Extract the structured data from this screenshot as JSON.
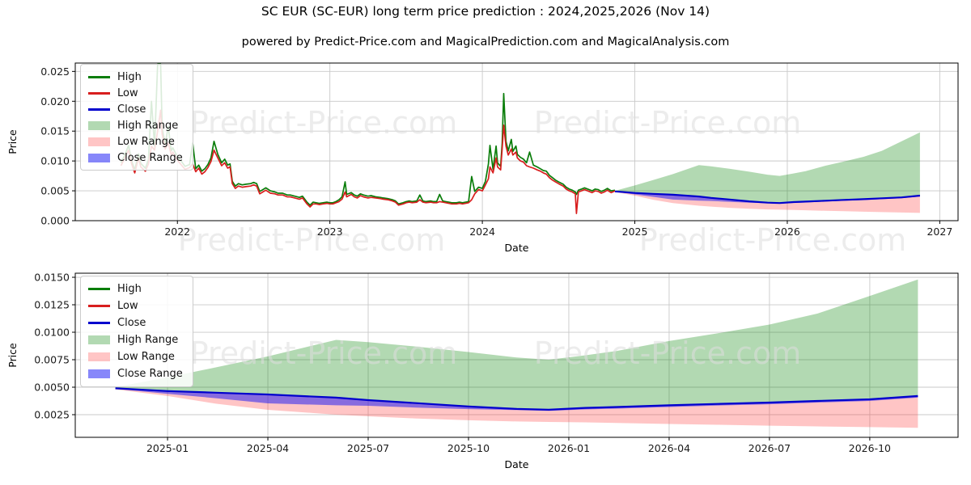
{
  "title": "SC EUR (SC-EUR) long term price prediction : 2024,2025,2026 (Nov 14)",
  "subtitle": "powered by Predict-Price.com and MagicalPrediction.com and MagicalAnalysis.com",
  "watermark": {
    "text": "Predict-Price.com"
  },
  "colors": {
    "high_line": "#0a7d0a",
    "low_line": "#d81e1e",
    "close_line": "#0000cd",
    "high_band": "rgba(0,128,0,0.30)",
    "low_band": "rgba(255,45,45,0.28)",
    "close_band": "rgba(25,25,245,0.52)",
    "grid": "#c9c9c9",
    "axis": "#000000",
    "tick_label": "#1a1a1a",
    "watermark": "#dedede",
    "legend_border": "#cccccc"
  },
  "legend": [
    {
      "label": "High",
      "swatch": "line",
      "color": "#0a7d0a"
    },
    {
      "label": "Low",
      "swatch": "line",
      "color": "#d81e1e"
    },
    {
      "label": "Close",
      "swatch": "line",
      "color": "#0000cd"
    },
    {
      "label": "High Range",
      "swatch": "patch",
      "color": "rgba(0,128,0,0.30)"
    },
    {
      "label": "Low Range",
      "swatch": "patch",
      "color": "rgba(255,45,45,0.28)"
    },
    {
      "label": "Close Range",
      "swatch": "patch",
      "color": "rgba(25,25,245,0.52)"
    }
  ],
  "chart_data": [
    {
      "type": "line",
      "name": "history-and-forecast",
      "title": "",
      "xlabel": "Date",
      "ylabel": "Price",
      "grid": true,
      "legend_position": "upper left",
      "xlim": [
        2021.33,
        2027.12
      ],
      "ylim": [
        0.0,
        0.0264
      ],
      "x_ticks": [
        {
          "t": 2022,
          "label": "2022"
        },
        {
          "t": 2023,
          "label": "2023"
        },
        {
          "t": 2024,
          "label": "2024"
        },
        {
          "t": 2025,
          "label": "2025"
        },
        {
          "t": 2026,
          "label": "2026"
        },
        {
          "t": 2027,
          "label": "2027"
        }
      ],
      "y_ticks": [
        {
          "v": 0.0,
          "label": "0.000"
        },
        {
          "v": 0.005,
          "label": "0.005"
        },
        {
          "v": 0.01,
          "label": "0.010"
        },
        {
          "v": 0.015,
          "label": "0.015"
        },
        {
          "v": 0.02,
          "label": "0.020"
        },
        {
          "v": 0.025,
          "label": "0.025"
        }
      ],
      "show_history": true,
      "show_forecast": true
    },
    {
      "type": "line",
      "name": "forecast-detail",
      "title": "",
      "xlabel": "Date",
      "ylabel": "Price",
      "grid": true,
      "legend_position": "upper left",
      "xlim": [
        2024.77,
        2026.97
      ],
      "ylim": [
        0.00044,
        0.01537
      ],
      "x_ticks": [
        {
          "t": 2025.0,
          "label": "2025-01"
        },
        {
          "t": 2025.25,
          "label": "2025-04"
        },
        {
          "t": 2025.5,
          "label": "2025-07"
        },
        {
          "t": 2025.75,
          "label": "2025-10"
        },
        {
          "t": 2026.0,
          "label": "2026-01"
        },
        {
          "t": 2026.25,
          "label": "2026-04"
        },
        {
          "t": 2026.5,
          "label": "2026-07"
        },
        {
          "t": 2026.75,
          "label": "2026-10"
        }
      ],
      "y_ticks": [
        {
          "v": 0.0025,
          "label": "0.0025"
        },
        {
          "v": 0.005,
          "label": "0.0050"
        },
        {
          "v": 0.0075,
          "label": "0.0075"
        },
        {
          "v": 0.01,
          "label": "0.0100"
        },
        {
          "v": 0.0125,
          "label": "0.0125"
        },
        {
          "v": 0.015,
          "label": "0.0150"
        }
      ],
      "show_history": false,
      "show_forecast": true
    }
  ],
  "history": {
    "columns": [
      "t",
      "low",
      "high"
    ],
    "points": [
      [
        2021.63,
        0.0092,
        0.0097
      ],
      [
        2021.655,
        0.0105,
        0.011
      ],
      [
        2021.68,
        0.0118,
        0.0126
      ],
      [
        2021.7,
        0.0095,
        0.01
      ],
      [
        2021.72,
        0.008,
        0.0085
      ],
      [
        2021.745,
        0.0105,
        0.0112
      ],
      [
        2021.76,
        0.009,
        0.0096
      ],
      [
        2021.79,
        0.0083,
        0.0088
      ],
      [
        2021.81,
        0.0095,
        0.0102
      ],
      [
        2021.83,
        0.0125,
        0.02
      ],
      [
        2021.85,
        0.0118,
        0.0125
      ],
      [
        2021.87,
        0.015,
        0.0262
      ],
      [
        2021.89,
        0.0185,
        0.0262
      ],
      [
        2021.9,
        0.0145,
        0.0155
      ],
      [
        2021.92,
        0.012,
        0.0128
      ],
      [
        2021.94,
        0.013,
        0.0158
      ],
      [
        2021.96,
        0.011,
        0.0117
      ],
      [
        2021.97,
        0.0115,
        0.0122
      ],
      [
        2021.99,
        0.0105,
        0.0112
      ],
      [
        2022.01,
        0.0098,
        0.0104
      ],
      [
        2022.03,
        0.0092,
        0.0098
      ],
      [
        2022.05,
        0.0086,
        0.0091
      ],
      [
        2022.08,
        0.0089,
        0.0094
      ],
      [
        2022.1,
        0.0095,
        0.013
      ],
      [
        2022.12,
        0.0082,
        0.0087
      ],
      [
        2022.14,
        0.0088,
        0.0093
      ],
      [
        2022.16,
        0.0078,
        0.0083
      ],
      [
        2022.18,
        0.0082,
        0.0087
      ],
      [
        2022.2,
        0.0089,
        0.0094
      ],
      [
        2022.22,
        0.0099,
        0.0105
      ],
      [
        2022.24,
        0.0118,
        0.0133
      ],
      [
        2022.265,
        0.0105,
        0.0111
      ],
      [
        2022.29,
        0.0092,
        0.0097
      ],
      [
        2022.31,
        0.0097,
        0.0103
      ],
      [
        2022.33,
        0.0088,
        0.0093
      ],
      [
        2022.345,
        0.009,
        0.0095
      ],
      [
        2022.36,
        0.0062,
        0.0066
      ],
      [
        2022.38,
        0.0054,
        0.0058
      ],
      [
        2022.4,
        0.0058,
        0.0062
      ],
      [
        2022.425,
        0.0056,
        0.006
      ],
      [
        2022.45,
        0.0057,
        0.0061
      ],
      [
        2022.48,
        0.0058,
        0.0062
      ],
      [
        2022.5,
        0.006,
        0.0064
      ],
      [
        2022.52,
        0.0058,
        0.0062
      ],
      [
        2022.54,
        0.0045,
        0.0049
      ],
      [
        2022.56,
        0.0048,
        0.0052
      ],
      [
        2022.58,
        0.0051,
        0.0055
      ],
      [
        2022.61,
        0.0046,
        0.005
      ],
      [
        2022.64,
        0.0045,
        0.0048
      ],
      [
        2022.66,
        0.0043,
        0.0046
      ],
      [
        2022.69,
        0.0043,
        0.0046
      ],
      [
        2022.72,
        0.004,
        0.0043
      ],
      [
        2022.74,
        0.004,
        0.0043
      ],
      [
        2022.77,
        0.0038,
        0.0041
      ],
      [
        2022.8,
        0.0036,
        0.0039
      ],
      [
        2022.82,
        0.0038,
        0.0041
      ],
      [
        2022.85,
        0.0028,
        0.0031
      ],
      [
        2022.87,
        0.0023,
        0.0026
      ],
      [
        2022.89,
        0.0028,
        0.0031
      ],
      [
        2022.91,
        0.0028,
        0.003
      ],
      [
        2022.93,
        0.0027,
        0.0029
      ],
      [
        2022.955,
        0.0028,
        0.003
      ],
      [
        2022.98,
        0.0029,
        0.0031
      ],
      [
        2023.0,
        0.0028,
        0.003
      ],
      [
        2023.02,
        0.0028,
        0.003
      ],
      [
        2023.04,
        0.003,
        0.0032
      ],
      [
        2023.06,
        0.0032,
        0.0035
      ],
      [
        2023.08,
        0.0036,
        0.004
      ],
      [
        2023.1,
        0.0048,
        0.0065
      ],
      [
        2023.11,
        0.004,
        0.0044
      ],
      [
        2023.14,
        0.0044,
        0.0047
      ],
      [
        2023.16,
        0.004,
        0.0043
      ],
      [
        2023.18,
        0.0038,
        0.0041
      ],
      [
        2023.2,
        0.0042,
        0.0045
      ],
      [
        2023.22,
        0.004,
        0.0043
      ],
      [
        2023.25,
        0.0038,
        0.0041
      ],
      [
        2023.27,
        0.0039,
        0.0042
      ],
      [
        2023.3,
        0.0038,
        0.004
      ],
      [
        2023.33,
        0.0037,
        0.0039
      ],
      [
        2023.35,
        0.0036,
        0.0038
      ],
      [
        2023.38,
        0.0035,
        0.0037
      ],
      [
        2023.41,
        0.0033,
        0.0035
      ],
      [
        2023.43,
        0.0031,
        0.0033
      ],
      [
        2023.45,
        0.0026,
        0.0028
      ],
      [
        2023.48,
        0.0028,
        0.003
      ],
      [
        2023.5,
        0.003,
        0.0032
      ],
      [
        2023.52,
        0.0031,
        0.0033
      ],
      [
        2023.54,
        0.003,
        0.0032
      ],
      [
        2023.57,
        0.0031,
        0.0033
      ],
      [
        2023.59,
        0.0035,
        0.0043
      ],
      [
        2023.61,
        0.0031,
        0.0033
      ],
      [
        2023.63,
        0.003,
        0.0032
      ],
      [
        2023.66,
        0.0031,
        0.0033
      ],
      [
        2023.68,
        0.003,
        0.0032
      ],
      [
        2023.7,
        0.003,
        0.0032
      ],
      [
        2023.72,
        0.0032,
        0.0044
      ],
      [
        2023.74,
        0.0031,
        0.0033
      ],
      [
        2023.76,
        0.003,
        0.0032
      ],
      [
        2023.78,
        0.0029,
        0.0031
      ],
      [
        2023.8,
        0.0028,
        0.003
      ],
      [
        2023.83,
        0.0028,
        0.003
      ],
      [
        2023.85,
        0.0029,
        0.0031
      ],
      [
        2023.87,
        0.0028,
        0.003
      ],
      [
        2023.89,
        0.0029,
        0.0031
      ],
      [
        2023.91,
        0.003,
        0.0032
      ],
      [
        2023.93,
        0.0035,
        0.0074
      ],
      [
        2023.95,
        0.0045,
        0.0049
      ],
      [
        2023.975,
        0.0052,
        0.0056
      ],
      [
        2024.0,
        0.005,
        0.0054
      ],
      [
        2024.02,
        0.006,
        0.0066
      ],
      [
        2024.04,
        0.007,
        0.0095
      ],
      [
        2024.05,
        0.009,
        0.0126
      ],
      [
        2024.07,
        0.008,
        0.0086
      ],
      [
        2024.09,
        0.0105,
        0.0125
      ],
      [
        2024.1,
        0.009,
        0.0097
      ],
      [
        2024.12,
        0.0085,
        0.0091
      ],
      [
        2024.13,
        0.012,
        0.013
      ],
      [
        2024.14,
        0.016,
        0.0213
      ],
      [
        2024.155,
        0.0125,
        0.0133
      ],
      [
        2024.17,
        0.011,
        0.0117
      ],
      [
        2024.19,
        0.012,
        0.0136
      ],
      [
        2024.2,
        0.011,
        0.0116
      ],
      [
        2024.22,
        0.0115,
        0.0125
      ],
      [
        2024.23,
        0.0105,
        0.0111
      ],
      [
        2024.25,
        0.01,
        0.0106
      ],
      [
        2024.27,
        0.0098,
        0.0103
      ],
      [
        2024.29,
        0.0092,
        0.0097
      ],
      [
        2024.31,
        0.009,
        0.0115
      ],
      [
        2024.335,
        0.0088,
        0.0093
      ],
      [
        2024.36,
        0.0085,
        0.009
      ],
      [
        2024.38,
        0.0083,
        0.0087
      ],
      [
        2024.4,
        0.008,
        0.0084
      ],
      [
        2024.42,
        0.0078,
        0.0083
      ],
      [
        2024.44,
        0.0072,
        0.0076
      ],
      [
        2024.46,
        0.0068,
        0.0072
      ],
      [
        2024.48,
        0.0065,
        0.0068
      ],
      [
        2024.5,
        0.0062,
        0.0065
      ],
      [
        2024.53,
        0.0058,
        0.0061
      ],
      [
        2024.55,
        0.0053,
        0.0056
      ],
      [
        2024.57,
        0.005,
        0.0053
      ],
      [
        2024.59,
        0.0048,
        0.0051
      ],
      [
        2024.61,
        0.0045,
        0.0048
      ],
      [
        2024.617,
        0.0012,
        0.0044
      ],
      [
        2024.63,
        0.0048,
        0.0051
      ],
      [
        2024.65,
        0.005,
        0.0053
      ],
      [
        2024.67,
        0.0052,
        0.0055
      ],
      [
        2024.7,
        0.0049,
        0.0052
      ],
      [
        2024.72,
        0.0047,
        0.005
      ],
      [
        2024.74,
        0.005,
        0.0053
      ],
      [
        2024.76,
        0.0049,
        0.0052
      ],
      [
        2024.78,
        0.0046,
        0.0049
      ],
      [
        2024.8,
        0.0048,
        0.0051
      ],
      [
        2024.82,
        0.0051,
        0.0054
      ],
      [
        2024.845,
        0.0047,
        0.005
      ],
      [
        2024.87,
        0.005,
        0.0051
      ]
    ]
  },
  "forecast": {
    "columns": [
      "t",
      "close",
      "close_lower",
      "high_upper",
      "low_lower"
    ],
    "points": [
      [
        2024.87,
        0.0049,
        0.00485,
        0.005,
        0.0048
      ],
      [
        2025.0,
        0.00465,
        0.0044,
        0.0059,
        0.0042
      ],
      [
        2025.12,
        0.0045,
        0.004,
        0.0068,
        0.0035
      ],
      [
        2025.25,
        0.00434,
        0.00353,
        0.0078,
        0.00294
      ],
      [
        2025.42,
        0.00405,
        0.00335,
        0.0093,
        0.0025
      ],
      [
        2025.5,
        0.00382,
        0.00331,
        0.0091,
        0.00235
      ],
      [
        2025.62,
        0.00355,
        0.00315,
        0.0087,
        0.00215
      ],
      [
        2025.75,
        0.00324,
        0.00301,
        0.0082,
        0.00199
      ],
      [
        2025.87,
        0.00302,
        0.00292,
        0.0077,
        0.00188
      ],
      [
        2025.95,
        0.00295,
        0.00285,
        0.0075,
        0.00184
      ],
      [
        2026.04,
        0.00312,
        0.00298,
        0.0079,
        0.0018
      ],
      [
        2026.12,
        0.0032,
        0.00305,
        0.0083,
        0.00175
      ],
      [
        2026.25,
        0.00335,
        0.0032,
        0.0092,
        0.00165
      ],
      [
        2026.37,
        0.00348,
        0.00333,
        0.0099,
        0.00158
      ],
      [
        2026.5,
        0.0036,
        0.00345,
        0.0107,
        0.0015
      ],
      [
        2026.62,
        0.00375,
        0.0036,
        0.0117,
        0.00143
      ],
      [
        2026.75,
        0.0039,
        0.00375,
        0.0133,
        0.00137
      ],
      [
        2026.87,
        0.0042,
        0.00405,
        0.0148,
        0.0013
      ]
    ]
  }
}
